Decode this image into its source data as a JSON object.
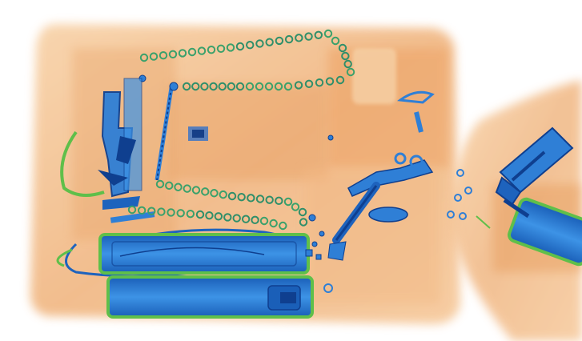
{
  "image": {
    "kind": "x-ray baggage scan",
    "background_color": "#ffffff",
    "palette": {
      "organic": "#f0b27a",
      "organic_dark": "#e0924f",
      "metal_blue": "#2f7fd6",
      "metal_dark": "#0f3f8f",
      "inorganic_green": "#5fbf4a"
    }
  }
}
